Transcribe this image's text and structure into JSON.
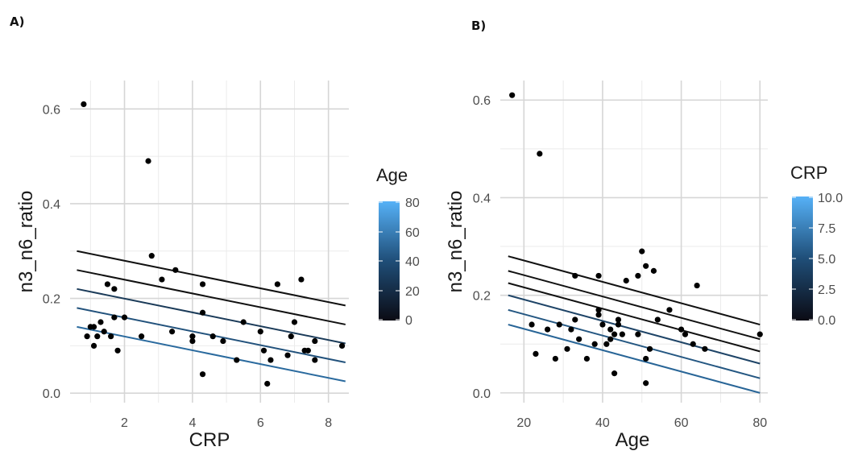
{
  "panels": [
    {
      "label": "A)",
      "xlabel": "CRP",
      "ylabel": "n3_n6_ratio",
      "legend_title": "Age",
      "legend_ticks": [
        "80",
        "60",
        "40",
        "20",
        "0"
      ]
    },
    {
      "label": "B)",
      "xlabel": "Age",
      "ylabel": "n3_n6_ratio",
      "legend_title": "CRP",
      "legend_ticks": [
        "10.0",
        "7.5",
        "5.0",
        "2.5",
        "0.0"
      ]
    }
  ],
  "chart_data": [
    {
      "type": "scatter",
      "title": "",
      "xlabel": "CRP",
      "ylabel": "n3_n6_ratio",
      "xlim": [
        0.4,
        8.6
      ],
      "ylim": [
        -0.02,
        0.66
      ],
      "xticks": [
        2,
        4,
        6,
        8
      ],
      "xtick_labels": [
        "2",
        "4",
        "6",
        "8"
      ],
      "yticks": [
        0.0,
        0.2,
        0.4,
        0.6
      ],
      "ytick_labels": [
        "0.0",
        "0.2",
        "0.4",
        "0.6"
      ],
      "grid": true,
      "colorbar": {
        "title": "Age",
        "range": [
          0,
          80
        ],
        "ticks": [
          0,
          20,
          40,
          60,
          80
        ],
        "low_color": "#0b0b14",
        "high_color": "#56b1f7"
      },
      "points": [
        {
          "x": 0.8,
          "y": 0.61
        },
        {
          "x": 2.7,
          "y": 0.49
        },
        {
          "x": 2.8,
          "y": 0.29
        },
        {
          "x": 3.5,
          "y": 0.26
        },
        {
          "x": 3.1,
          "y": 0.24
        },
        {
          "x": 4.3,
          "y": 0.23
        },
        {
          "x": 7.2,
          "y": 0.24
        },
        {
          "x": 6.5,
          "y": 0.23
        },
        {
          "x": 1.5,
          "y": 0.23
        },
        {
          "x": 1.7,
          "y": 0.22
        },
        {
          "x": 4.3,
          "y": 0.17
        },
        {
          "x": 1.7,
          "y": 0.16
        },
        {
          "x": 2.0,
          "y": 0.16
        },
        {
          "x": 5.5,
          "y": 0.15
        },
        {
          "x": 7.0,
          "y": 0.15
        },
        {
          "x": 1.3,
          "y": 0.15
        },
        {
          "x": 1.0,
          "y": 0.14
        },
        {
          "x": 1.1,
          "y": 0.14
        },
        {
          "x": 1.4,
          "y": 0.13
        },
        {
          "x": 6.0,
          "y": 0.13
        },
        {
          "x": 3.4,
          "y": 0.13
        },
        {
          "x": 6.9,
          "y": 0.12
        },
        {
          "x": 1.2,
          "y": 0.12
        },
        {
          "x": 0.9,
          "y": 0.12
        },
        {
          "x": 1.6,
          "y": 0.12
        },
        {
          "x": 2.5,
          "y": 0.12
        },
        {
          "x": 4.0,
          "y": 0.12
        },
        {
          "x": 4.6,
          "y": 0.12
        },
        {
          "x": 4.9,
          "y": 0.11
        },
        {
          "x": 7.6,
          "y": 0.11
        },
        {
          "x": 4.0,
          "y": 0.11
        },
        {
          "x": 1.1,
          "y": 0.1
        },
        {
          "x": 8.4,
          "y": 0.1
        },
        {
          "x": 7.3,
          "y": 0.09
        },
        {
          "x": 7.4,
          "y": 0.09
        },
        {
          "x": 6.1,
          "y": 0.09
        },
        {
          "x": 1.8,
          "y": 0.09
        },
        {
          "x": 6.8,
          "y": 0.08
        },
        {
          "x": 6.3,
          "y": 0.07
        },
        {
          "x": 5.3,
          "y": 0.07
        },
        {
          "x": 7.6,
          "y": 0.07
        },
        {
          "x": 4.3,
          "y": 0.04
        },
        {
          "x": 6.2,
          "y": 0.02
        }
      ],
      "fit_lines": [
        {
          "age": 80,
          "x": [
            0.6,
            8.5
          ],
          "y": [
            0.3,
            0.185
          ]
        },
        {
          "age": 60,
          "x": [
            0.6,
            8.5
          ],
          "y": [
            0.26,
            0.145
          ]
        },
        {
          "age": 40,
          "x": [
            0.6,
            8.5
          ],
          "y": [
            0.22,
            0.105
          ]
        },
        {
          "age": 20,
          "x": [
            0.6,
            8.5
          ],
          "y": [
            0.18,
            0.065
          ]
        },
        {
          "age": 0,
          "x": [
            0.6,
            8.5
          ],
          "y": [
            0.14,
            0.025
          ]
        }
      ]
    },
    {
      "type": "scatter",
      "title": "",
      "xlabel": "Age",
      "ylabel": "n3_n6_ratio",
      "xlim": [
        14,
        82
      ],
      "ylim": [
        -0.02,
        0.64
      ],
      "xticks": [
        20,
        40,
        60,
        80
      ],
      "xtick_labels": [
        "20",
        "40",
        "60",
        "80"
      ],
      "yticks": [
        0.0,
        0.2,
        0.4,
        0.6
      ],
      "ytick_labels": [
        "0.0",
        "0.2",
        "0.4",
        "0.6"
      ],
      "grid": true,
      "colorbar": {
        "title": "CRP",
        "range": [
          0,
          10
        ],
        "ticks": [
          0,
          2.5,
          5,
          7.5,
          10
        ],
        "low_color": "#0b0b14",
        "high_color": "#56b1f7"
      },
      "points": [
        {
          "x": 17,
          "y": 0.61
        },
        {
          "x": 24,
          "y": 0.49
        },
        {
          "x": 50,
          "y": 0.29
        },
        {
          "x": 51,
          "y": 0.26
        },
        {
          "x": 53,
          "y": 0.25
        },
        {
          "x": 39,
          "y": 0.24
        },
        {
          "x": 33,
          "y": 0.24
        },
        {
          "x": 49,
          "y": 0.24
        },
        {
          "x": 46,
          "y": 0.23
        },
        {
          "x": 64,
          "y": 0.22
        },
        {
          "x": 57,
          "y": 0.17
        },
        {
          "x": 39,
          "y": 0.17
        },
        {
          "x": 39,
          "y": 0.16
        },
        {
          "x": 54,
          "y": 0.15
        },
        {
          "x": 44,
          "y": 0.15
        },
        {
          "x": 33,
          "y": 0.15
        },
        {
          "x": 29,
          "y": 0.14
        },
        {
          "x": 22,
          "y": 0.14
        },
        {
          "x": 40,
          "y": 0.14
        },
        {
          "x": 44,
          "y": 0.14
        },
        {
          "x": 26,
          "y": 0.13
        },
        {
          "x": 42,
          "y": 0.13
        },
        {
          "x": 60,
          "y": 0.13
        },
        {
          "x": 32,
          "y": 0.13
        },
        {
          "x": 43,
          "y": 0.12
        },
        {
          "x": 49,
          "y": 0.12
        },
        {
          "x": 61,
          "y": 0.12
        },
        {
          "x": 45,
          "y": 0.12
        },
        {
          "x": 80,
          "y": 0.12
        },
        {
          "x": 34,
          "y": 0.11
        },
        {
          "x": 42,
          "y": 0.11
        },
        {
          "x": 63,
          "y": 0.1
        },
        {
          "x": 38,
          "y": 0.1
        },
        {
          "x": 41,
          "y": 0.1
        },
        {
          "x": 52,
          "y": 0.09
        },
        {
          "x": 31,
          "y": 0.09
        },
        {
          "x": 66,
          "y": 0.09
        },
        {
          "x": 23,
          "y": 0.08
        },
        {
          "x": 28,
          "y": 0.07
        },
        {
          "x": 36,
          "y": 0.07
        },
        {
          "x": 51,
          "y": 0.07
        },
        {
          "x": 43,
          "y": 0.04
        },
        {
          "x": 51,
          "y": 0.02
        }
      ],
      "fit_lines": [
        {
          "crp": 10.0,
          "x": [
            16,
            80
          ],
          "y": [
            0.28,
            0.14
          ]
        },
        {
          "crp": 8.0,
          "x": [
            16,
            80
          ],
          "y": [
            0.25,
            0.11
          ]
        },
        {
          "crp": 6.0,
          "x": [
            16,
            80
          ],
          "y": [
            0.225,
            0.085
          ]
        },
        {
          "crp": 4.0,
          "x": [
            16,
            80
          ],
          "y": [
            0.2,
            0.06
          ]
        },
        {
          "crp": 2.0,
          "x": [
            16,
            80
          ],
          "y": [
            0.17,
            0.03
          ]
        },
        {
          "crp": 0.5,
          "x": [
            16,
            80
          ],
          "y": [
            0.14,
            0.0
          ]
        }
      ]
    }
  ]
}
